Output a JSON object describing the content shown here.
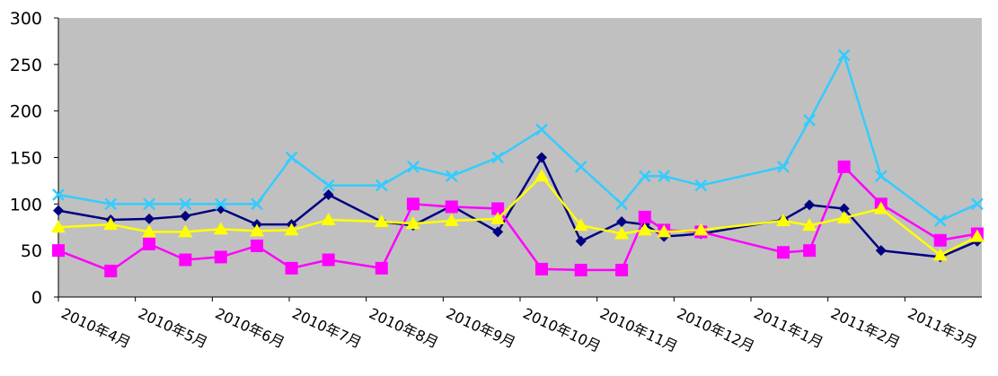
{
  "chart_data": {
    "type": "line",
    "x": [
      0,
      0.68,
      1.18,
      1.65,
      2.11,
      2.58,
      3.03,
      3.51,
      4.2,
      4.61,
      5.11,
      5.71,
      6.28,
      6.79,
      7.32,
      7.62,
      7.87,
      8.35,
      9.42,
      9.76,
      10.21,
      10.69,
      11.46,
      11.94
    ],
    "series": [
      {
        "color": "#000080",
        "marker": "diamond",
        "values": [
          93,
          83,
          84,
          87,
          95,
          78,
          78,
          110,
          81,
          77,
          98,
          70,
          150,
          60,
          81,
          78,
          65,
          68,
          83,
          99,
          95,
          50,
          43,
          60
        ]
      },
      {
        "color": "#ff00ff",
        "marker": "square",
        "values": [
          50,
          28,
          57,
          40,
          43,
          55,
          31,
          40,
          31,
          100,
          97,
          95,
          30,
          29,
          29,
          86,
          72,
          70,
          48,
          50,
          140,
          100,
          61,
          68
        ]
      },
      {
        "color": "#ffff00",
        "marker": "triangle",
        "values": [
          75,
          78,
          70,
          70,
          73,
          71,
          72,
          83,
          81,
          79,
          82,
          84,
          130,
          77,
          68,
          72,
          70,
          72,
          82,
          77,
          85,
          95,
          45,
          65
        ]
      },
      {
        "color": "#33ccff",
        "marker": "x",
        "values": [
          110,
          100,
          100,
          100,
          100,
          100,
          150,
          120,
          120,
          140,
          130,
          150,
          180,
          140,
          100,
          130,
          130,
          120,
          140,
          190,
          260,
          130,
          82,
          100
        ]
      }
    ],
    "xlim": [
      0,
      12
    ],
    "xticks": [
      {
        "value": 0,
        "label": "2010年4月"
      },
      {
        "value": 1,
        "label": "2010年5月"
      },
      {
        "value": 2,
        "label": "2010年6月"
      },
      {
        "value": 3,
        "label": "2010年7月"
      },
      {
        "value": 4,
        "label": "2010年8月"
      },
      {
        "value": 5,
        "label": "2010年9月"
      },
      {
        "value": 6,
        "label": "2010年10月"
      },
      {
        "value": 7,
        "label": "2010年11月"
      },
      {
        "value": 8,
        "label": "2010年12月"
      },
      {
        "value": 9,
        "label": "2011年1月"
      },
      {
        "value": 10,
        "label": "2011年2月"
      },
      {
        "value": 11,
        "label": "2011年3月"
      }
    ],
    "ylim": [
      0,
      300
    ],
    "yticks": [
      0,
      50,
      100,
      150,
      200,
      250,
      300
    ],
    "plot_background": "#c0c0c0"
  }
}
